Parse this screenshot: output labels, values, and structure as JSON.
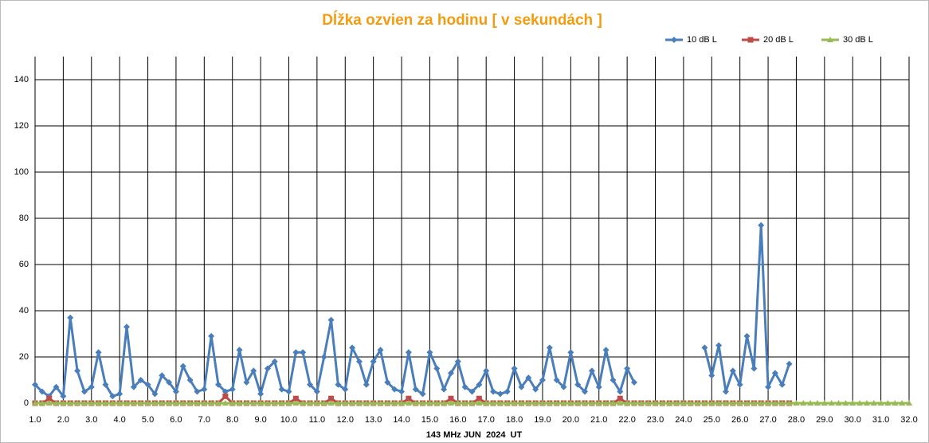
{
  "chart_data": {
    "type": "line",
    "title": "Dĺžka ozvien za hodinu [ v sekundách ]",
    "x_label": "143 MHz JUN  2024  UT",
    "grid": true,
    "legend": "top-right",
    "xlim": [
      1,
      32
    ],
    "ylim": [
      0,
      150
    ],
    "yticks": [
      0,
      20,
      40,
      60,
      80,
      100,
      120,
      140
    ],
    "xticks": [
      {
        "value": 1,
        "label": "1.0"
      },
      {
        "value": 2,
        "label": "2.0"
      },
      {
        "value": 3,
        "label": "3.0"
      },
      {
        "value": 4,
        "label": "4.0"
      },
      {
        "value": 5,
        "label": "5.0"
      },
      {
        "value": 6,
        "label": "6.0"
      },
      {
        "value": 7,
        "label": "7.0"
      },
      {
        "value": 8,
        "label": "8.0"
      },
      {
        "value": 9,
        "label": "9.0"
      },
      {
        "value": 10,
        "label": "10.0"
      },
      {
        "value": 11,
        "label": "11.0"
      },
      {
        "value": 12,
        "label": "12.0"
      },
      {
        "value": 13,
        "label": "13.0"
      },
      {
        "value": 14,
        "label": "14.0"
      },
      {
        "value": 15,
        "label": "15.0"
      },
      {
        "value": 16,
        "label": "16.0"
      },
      {
        "value": 17,
        "label": "17.0"
      },
      {
        "value": 18,
        "label": "18.0"
      },
      {
        "value": 19,
        "label": "19.0"
      },
      {
        "value": 20,
        "label": "20.0"
      },
      {
        "value": 21,
        "label": "21.0"
      },
      {
        "value": 22,
        "label": "22.0"
      },
      {
        "value": 23,
        "label": "23.0"
      },
      {
        "value": 24,
        "label": "24.0"
      },
      {
        "value": 25,
        "label": "25.0"
      },
      {
        "value": 26,
        "label": "26.0"
      },
      {
        "value": 27,
        "label": "27.0"
      },
      {
        "value": 28,
        "label": "28.0"
      },
      {
        "value": 29,
        "label": "29.0"
      },
      {
        "value": 30,
        "label": "30.0"
      },
      {
        "value": 31,
        "label": "31.0"
      },
      {
        "value": 32,
        "label": "32.0"
      }
    ],
    "x": [
      1,
      1.25,
      1.5,
      1.75,
      2,
      2.25,
      2.5,
      2.75,
      3,
      3.25,
      3.5,
      3.75,
      4,
      4.25,
      4.5,
      4.75,
      5,
      5.25,
      5.5,
      5.75,
      6,
      6.25,
      6.5,
      6.75,
      7,
      7.25,
      7.5,
      7.75,
      8,
      8.25,
      8.5,
      8.75,
      9,
      9.25,
      9.5,
      9.75,
      10,
      10.25,
      10.5,
      10.75,
      11,
      11.25,
      11.5,
      11.75,
      12,
      12.25,
      12.5,
      12.75,
      13,
      13.25,
      13.5,
      13.75,
      14,
      14.25,
      14.5,
      14.75,
      15,
      15.25,
      15.5,
      15.75,
      16,
      16.25,
      16.5,
      16.75,
      17,
      17.25,
      17.5,
      17.75,
      18,
      18.25,
      18.5,
      18.75,
      19,
      19.25,
      19.5,
      19.75,
      20,
      20.25,
      20.5,
      20.75,
      21,
      21.25,
      21.5,
      21.75,
      22,
      22.25,
      22.5,
      22.75,
      23,
      23.25,
      23.5,
      23.75,
      24,
      24.25,
      24.5,
      24.75,
      25,
      25.25,
      25.5,
      25.75,
      26,
      26.25,
      26.5,
      26.75,
      27,
      27.25,
      27.5,
      27.75,
      28,
      28.25,
      28.5,
      28.75,
      29,
      29.25,
      29.5,
      29.75,
      30,
      30.25,
      30.5,
      30.75,
      31,
      31.25,
      31.5,
      31.75,
      32
    ],
    "series": [
      {
        "name": "10 dB L",
        "color": "#4a7ebb",
        "marker": "diamond",
        "values": [
          8,
          5,
          3,
          7,
          3,
          37,
          14,
          5,
          7,
          22,
          8,
          3,
          4,
          33,
          7,
          10,
          8,
          4,
          12,
          9,
          5,
          16,
          10,
          5,
          6,
          29,
          8,
          5,
          6,
          23,
          9,
          14,
          4,
          15,
          18,
          6,
          5,
          22,
          22,
          8,
          5,
          20,
          36,
          8,
          6,
          24,
          18,
          8,
          18,
          23,
          9,
          6,
          5,
          22,
          6,
          4,
          22,
          15,
          6,
          13,
          18,
          7,
          5,
          8,
          14,
          5,
          4,
          5,
          15,
          7,
          11,
          6,
          10,
          24,
          10,
          7,
          22,
          8,
          5,
          14,
          7,
          23,
          10,
          5,
          15,
          9,
          null,
          null,
          null,
          null,
          null,
          null,
          null,
          null,
          null,
          24,
          12,
          25,
          5,
          14,
          8,
          29,
          15,
          77,
          7,
          13,
          8,
          17,
          null,
          null,
          null,
          null,
          null,
          null,
          null,
          null,
          null,
          null,
          null,
          null,
          null,
          null,
          null,
          null,
          null
        ]
      },
      {
        "name": "20 dB L",
        "color": "#be4b48",
        "marker": "square",
        "values": [
          0,
          0,
          2,
          0,
          0,
          0,
          0,
          0,
          0,
          0,
          0,
          0,
          0,
          0,
          0,
          0,
          0,
          0,
          0,
          0,
          0,
          0,
          0,
          0,
          0,
          0,
          0,
          3,
          0,
          0,
          0,
          0,
          0,
          0,
          0,
          0,
          0,
          2,
          0,
          0,
          0,
          0,
          2,
          0,
          0,
          0,
          0,
          0,
          0,
          0,
          0,
          0,
          0,
          2,
          0,
          0,
          0,
          0,
          0,
          2,
          0,
          0,
          0,
          2,
          0,
          0,
          0,
          0,
          0,
          0,
          0,
          0,
          0,
          0,
          0,
          0,
          0,
          0,
          0,
          0,
          0,
          0,
          0,
          2,
          0,
          0,
          0,
          0,
          0,
          0,
          0,
          0,
          0,
          0,
          0,
          0,
          0,
          0,
          0,
          0,
          0,
          0,
          0,
          0,
          0,
          0,
          0,
          0,
          null,
          null,
          null,
          null,
          null,
          null,
          null,
          null,
          null,
          null,
          null,
          null,
          null,
          null,
          null,
          null,
          null
        ]
      },
      {
        "name": "30 dB L",
        "color": "#98b954",
        "marker": "triangle",
        "values": [
          0,
          0,
          0,
          0,
          0,
          0,
          0,
          0,
          0,
          0,
          0,
          0,
          0,
          0,
          0,
          0,
          0,
          0,
          0,
          0,
          0,
          0,
          0,
          0,
          0,
          0,
          0,
          0,
          0,
          0,
          0,
          0,
          0,
          0,
          0,
          0,
          0,
          0,
          0,
          0,
          0,
          0,
          0,
          0,
          0,
          0,
          0,
          0,
          0,
          0,
          0,
          0,
          0,
          0,
          0,
          0,
          0,
          0,
          0,
          0,
          0,
          0,
          0,
          0,
          0,
          0,
          0,
          0,
          0,
          0,
          0,
          0,
          0,
          0,
          0,
          0,
          0,
          0,
          0,
          0,
          0,
          0,
          0,
          0,
          0,
          0,
          0,
          0,
          0,
          0,
          0,
          0,
          0,
          0,
          0,
          0,
          0,
          0,
          0,
          0,
          0,
          0,
          0,
          0,
          0,
          0,
          0,
          0,
          0,
          0,
          0,
          0,
          0,
          0,
          0,
          0,
          0,
          0,
          0,
          0,
          0,
          0,
          0,
          0,
          0
        ]
      }
    ]
  }
}
